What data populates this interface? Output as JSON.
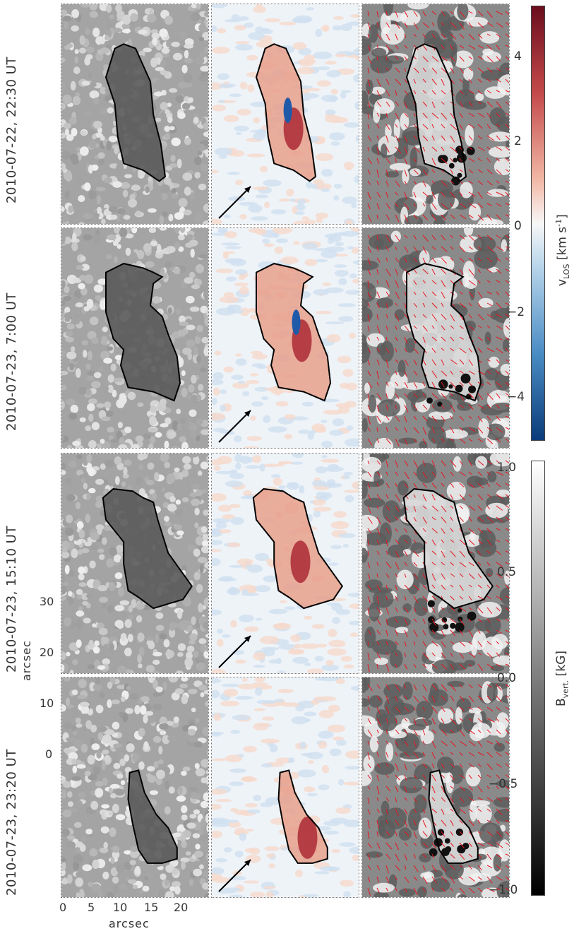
{
  "rows": [
    {
      "label": "2010-07-22, 22:30 UT"
    },
    {
      "label": "2010-07-23, 7:00 UT"
    },
    {
      "label": "2010-07-23, 15:10 UT"
    },
    {
      "label": "2010-07-23, 23:20 UT"
    }
  ],
  "axes": {
    "x_title": "arcsec",
    "y_title": "arcsec",
    "x_ticks": [
      "0",
      "5",
      "10",
      "15",
      "20"
    ],
    "y_ticks": [
      "0",
      "10",
      "20",
      "30"
    ]
  },
  "colorbar_vlos": {
    "title": "v_LOS [km s^-1]",
    "title_main": "v",
    "title_sub": "LOS",
    "title_unit": "[km s",
    "title_sup": "-1",
    "title_close": "]",
    "ticks": [
      "4",
      "2",
      "0",
      "−2",
      "−4"
    ],
    "range": [
      -5,
      5
    ],
    "colors": {
      "low": "#0b3b7a",
      "mid": "#f7f7f7",
      "high": "#6b0d1e"
    }
  },
  "colorbar_bvert": {
    "title_main": "B",
    "title_sub": "vert.",
    "title_unit": "[kG]",
    "ticks": [
      "1.0",
      "0.5",
      "0.0",
      "−0.5",
      "−1.0"
    ],
    "range": [
      -1.0,
      1.0
    ],
    "colors": {
      "low": "#000000",
      "high": "#ffffff"
    }
  },
  "colors": {
    "vector_arrows": "#e8141e",
    "contour": "#000000"
  }
}
